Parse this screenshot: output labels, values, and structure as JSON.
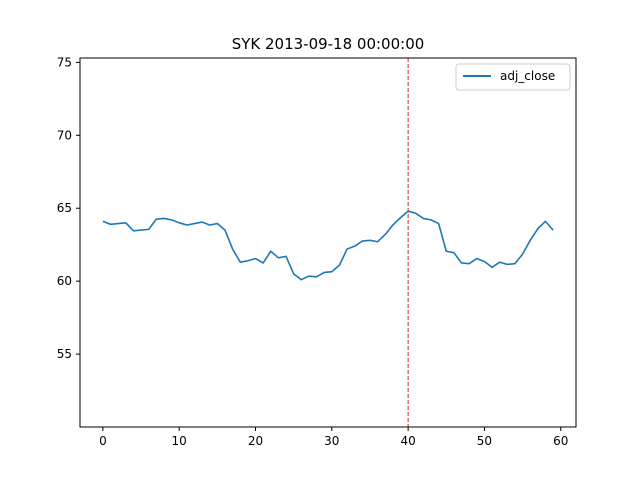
{
  "chart_data": {
    "type": "line",
    "title": "SYK 2013-09-18 00:00:00",
    "xlabel": "",
    "ylabel": "",
    "xlim": [
      -3,
      62
    ],
    "ylim": [
      50,
      75.3
    ],
    "xticks": [
      0,
      10,
      20,
      30,
      40,
      50,
      60
    ],
    "yticks": [
      55,
      60,
      65,
      70,
      75
    ],
    "grid": false,
    "legend": {
      "position": "top-right"
    },
    "vline": {
      "x": 40,
      "color": "#d62728",
      "style": "dashed"
    },
    "series": [
      {
        "name": "adj_close",
        "color": "#1f77b4",
        "x": [
          0,
          1,
          2,
          3,
          4,
          5,
          6,
          7,
          8,
          9,
          10,
          11,
          12,
          13,
          14,
          15,
          16,
          17,
          18,
          19,
          20,
          21,
          22,
          23,
          24,
          25,
          26,
          27,
          28,
          29,
          30,
          31,
          32,
          33,
          34,
          35,
          36,
          37,
          38,
          39,
          40,
          41,
          42,
          43,
          44,
          45,
          46,
          47,
          48,
          49,
          50,
          51,
          52,
          53,
          54,
          55,
          56,
          57,
          58,
          59
        ],
        "values": [
          64.1,
          63.9,
          63.95,
          64.0,
          63.45,
          63.5,
          63.55,
          64.25,
          64.3,
          64.2,
          64.0,
          63.85,
          63.95,
          64.05,
          63.85,
          63.95,
          63.5,
          62.2,
          61.3,
          61.4,
          61.55,
          61.25,
          62.05,
          61.6,
          61.7,
          60.5,
          60.1,
          60.35,
          60.3,
          60.6,
          60.65,
          61.1,
          62.2,
          62.4,
          62.75,
          62.8,
          62.7,
          63.2,
          63.85,
          64.35,
          64.8,
          64.65,
          64.3,
          64.2,
          63.95,
          62.05,
          61.95,
          61.25,
          61.2,
          61.55,
          61.35,
          60.95,
          61.3,
          61.15,
          61.2,
          61.85,
          62.8,
          63.6,
          64.1,
          63.5
        ]
      }
    ]
  }
}
